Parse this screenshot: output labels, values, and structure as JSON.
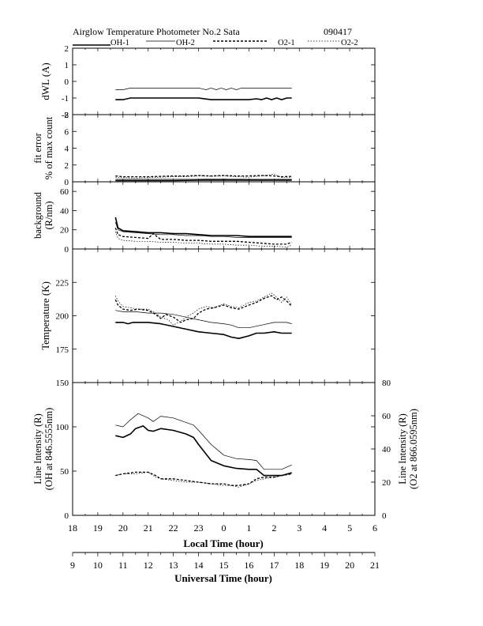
{
  "header": {
    "title": "Airglow Temperature Photometer No.2  Sata",
    "date": "090417"
  },
  "legend": [
    {
      "name": "OH-1",
      "style": "solid-thick"
    },
    {
      "name": "OH-2",
      "style": "solid-thin"
    },
    {
      "name": "O2-1",
      "style": "dashed-thick"
    },
    {
      "name": "O2-2",
      "style": "dotted-thin"
    }
  ],
  "axes": {
    "local_time_label": "Local Time (hour)",
    "universal_time_label": "Universal Time (hour)",
    "local_ticks": [
      "18",
      "19",
      "20",
      "21",
      "22",
      "23",
      "0",
      "1",
      "2",
      "3",
      "4",
      "5",
      "6"
    ],
    "ut_ticks": [
      "9",
      "10",
      "11",
      "12",
      "13",
      "14",
      "15",
      "16",
      "17",
      "18",
      "19",
      "20",
      "21"
    ]
  },
  "colors": {
    "line": "#000000",
    "background": "#ffffff"
  },
  "chart_data": [
    {
      "type": "line",
      "panel": "dwl",
      "ylabel": "dWL (A)",
      "ylim": [
        -2,
        2
      ],
      "yticks": [
        "-2",
        "-1",
        "0",
        "1",
        "2"
      ],
      "xlim": [
        18,
        30
      ],
      "series": [
        {
          "name": "OH-1",
          "x": [
            19.7,
            20.0,
            20.3,
            21.0,
            22.0,
            23.0,
            23.5,
            24.0,
            24.5,
            25.0,
            25.3,
            25.5,
            25.7,
            25.9,
            26.1,
            26.3,
            26.5,
            26.7
          ],
          "y": [
            -1.1,
            -1.1,
            -1.0,
            -1.0,
            -1.0,
            -1.0,
            -1.1,
            -1.1,
            -1.1,
            -1.1,
            -1.05,
            -1.1,
            -1.0,
            -1.1,
            -1.0,
            -1.1,
            -1.0,
            -1.0
          ]
        },
        {
          "name": "OH-2",
          "x": [
            19.7,
            20.0,
            20.3,
            21.0,
            22.0,
            23.0,
            23.3,
            23.5,
            23.7,
            23.9,
            24.1,
            24.3,
            24.5,
            24.7,
            25.0,
            25.5,
            26.0,
            26.7
          ],
          "y": [
            -0.5,
            -0.5,
            -0.4,
            -0.4,
            -0.4,
            -0.4,
            -0.5,
            -0.4,
            -0.5,
            -0.4,
            -0.5,
            -0.4,
            -0.5,
            -0.4,
            -0.4,
            -0.4,
            -0.4,
            -0.4
          ]
        }
      ]
    },
    {
      "type": "line",
      "panel": "fit_error",
      "ylabel": "fit error",
      "ylabel2": "% of max count",
      "ylim": [
        0,
        8
      ],
      "yticks": [
        "0",
        "2",
        "4",
        "6",
        "8"
      ],
      "xlim": [
        18,
        30
      ],
      "series": [
        {
          "name": "OH-1",
          "x": [
            19.7,
            21.0,
            22.0,
            23.0,
            24.0,
            25.0,
            26.0,
            26.7
          ],
          "y": [
            0.15,
            0.15,
            0.15,
            0.2,
            0.2,
            0.2,
            0.2,
            0.2
          ]
        },
        {
          "name": "OH-2",
          "x": [
            19.7,
            21.0,
            22.0,
            23.0,
            24.0,
            25.0,
            26.0,
            26.7
          ],
          "y": [
            0.3,
            0.3,
            0.3,
            0.3,
            0.35,
            0.3,
            0.3,
            0.3
          ]
        },
        {
          "name": "O2-1",
          "x": [
            19.7,
            20.0,
            20.5,
            21.0,
            21.5,
            22.0,
            22.5,
            23.0,
            23.5,
            24.0,
            24.5,
            25.0,
            25.5,
            26.0,
            26.3,
            26.7
          ],
          "y": [
            0.7,
            0.6,
            0.6,
            0.6,
            0.65,
            0.7,
            0.7,
            0.75,
            0.7,
            0.75,
            0.7,
            0.7,
            0.75,
            0.7,
            0.6,
            0.65
          ]
        },
        {
          "name": "O2-2",
          "x": [
            19.7,
            20.0,
            20.5,
            21.0,
            21.5,
            22.0,
            22.5,
            23.0,
            23.5,
            24.0,
            24.5,
            25.0,
            25.5,
            26.0,
            26.3,
            26.7
          ],
          "y": [
            0.55,
            0.5,
            0.45,
            0.5,
            0.55,
            0.6,
            0.6,
            0.7,
            0.65,
            0.7,
            0.6,
            0.55,
            0.7,
            0.9,
            0.5,
            0.5
          ]
        }
      ]
    },
    {
      "type": "line",
      "panel": "background",
      "ylabel": "background",
      "ylabel2": "(R/nm)",
      "ylim": [
        0,
        70
      ],
      "yticks": [
        "0",
        "20",
        "40",
        "60"
      ],
      "xlim": [
        18,
        30
      ],
      "series": [
        {
          "name": "OH-1",
          "x": [
            19.7,
            19.8,
            20.0,
            20.5,
            21.0,
            21.5,
            22.0,
            22.5,
            23.0,
            23.5,
            24.0,
            24.5,
            25.0,
            25.5,
            26.0,
            26.7
          ],
          "y": [
            33,
            22,
            19,
            18,
            17,
            17,
            16,
            16,
            15,
            14,
            14,
            14,
            13,
            13,
            13,
            13
          ]
        },
        {
          "name": "OH-2",
          "x": [
            19.7,
            19.8,
            20.0,
            20.5,
            21.0,
            21.5,
            22.0,
            22.5,
            23.0,
            23.5,
            24.0,
            24.5,
            25.0,
            25.5,
            26.0,
            26.7
          ],
          "y": [
            28,
            20,
            18,
            17,
            16,
            15,
            15,
            14,
            14,
            13,
            13,
            12,
            12,
            12,
            12,
            12
          ]
        },
        {
          "name": "O2-1",
          "x": [
            19.7,
            19.8,
            20.0,
            20.5,
            21.0,
            21.2,
            21.5,
            22.0,
            22.5,
            23.0,
            23.5,
            24.0,
            24.5,
            25.0,
            25.5,
            26.0,
            26.5,
            26.7
          ],
          "y": [
            22,
            15,
            13,
            12,
            11,
            16,
            10,
            10,
            9,
            9,
            8,
            8,
            8,
            7,
            6,
            5,
            5,
            7
          ]
        },
        {
          "name": "O2-2",
          "x": [
            19.7,
            19.8,
            20.0,
            20.5,
            21.0,
            21.5,
            22.0,
            22.5,
            23.0,
            23.5,
            24.0,
            24.5,
            25.0,
            25.5,
            26.0,
            26.5,
            26.7
          ],
          "y": [
            18,
            11,
            9,
            8,
            8,
            7,
            7,
            6,
            6,
            5,
            5,
            4,
            4,
            3,
            3,
            2,
            4
          ]
        }
      ]
    },
    {
      "type": "line",
      "panel": "temperature",
      "ylabel": "Temperature (K)",
      "ylim": [
        150,
        250
      ],
      "yticks": [
        "175",
        "200",
        "225"
      ],
      "xlim": [
        18,
        30
      ],
      "series": [
        {
          "name": "OH-1",
          "x": [
            19.7,
            20.0,
            20.2,
            20.4,
            21.0,
            21.5,
            22.0,
            22.5,
            23.0,
            23.5,
            24.0,
            24.3,
            24.6,
            25.0,
            25.3,
            25.6,
            26.0,
            26.3,
            26.7
          ],
          "y": [
            195,
            195,
            194,
            195,
            195,
            194,
            192,
            190,
            188,
            187,
            186,
            184,
            183,
            185,
            187,
            187,
            188,
            187,
            187
          ]
        },
        {
          "name": "OH-2",
          "x": [
            19.7,
            20.0,
            20.5,
            21.0,
            21.5,
            22.0,
            22.5,
            23.0,
            23.5,
            24.0,
            24.3,
            24.6,
            25.0,
            25.5,
            26.0,
            26.5,
            26.7
          ],
          "y": [
            204,
            203,
            203,
            202,
            202,
            201,
            199,
            197,
            195,
            194,
            193,
            191,
            191,
            193,
            195,
            195,
            194
          ]
        },
        {
          "name": "O2-1",
          "x": [
            19.7,
            19.8,
            20.0,
            20.3,
            20.6,
            21.0,
            21.3,
            21.5,
            21.7,
            22.0,
            22.3,
            22.5,
            22.8,
            23.0,
            23.3,
            23.6,
            24.0,
            24.3,
            24.6,
            25.0,
            25.3,
            25.6,
            25.9,
            26.1,
            26.3,
            26.5,
            26.7
          ],
          "y": [
            212,
            208,
            205,
            204,
            205,
            204,
            201,
            198,
            201,
            199,
            195,
            197,
            198,
            202,
            205,
            206,
            208,
            206,
            205,
            208,
            210,
            213,
            215,
            212,
            214,
            211,
            207
          ]
        },
        {
          "name": "O2-2",
          "x": [
            19.7,
            19.8,
            20.0,
            20.3,
            20.6,
            21.0,
            21.3,
            21.5,
            21.8,
            22.0,
            22.3,
            22.5,
            22.8,
            23.0,
            23.3,
            23.6,
            24.0,
            24.3,
            24.6,
            25.0,
            25.3,
            25.6,
            25.9,
            26.1,
            26.3,
            26.5,
            26.7
          ],
          "y": [
            215,
            211,
            207,
            206,
            205,
            205,
            202,
            199,
            197,
            193,
            196,
            199,
            202,
            205,
            207,
            206,
            209,
            207,
            206,
            210,
            211,
            214,
            217,
            214,
            210,
            214,
            208
          ]
        }
      ]
    },
    {
      "type": "line",
      "panel": "line_intensity",
      "ylabel": "Line Intensity (R)",
      "ylabel2": "(OH at 846.5555nm)",
      "ylabel_right": "Line Intensity (R)",
      "ylabel_right2": "(O2 at 866.0595nm)",
      "ylim": [
        0,
        150
      ],
      "ylim_right": [
        0,
        80
      ],
      "yticks": [
        "0",
        "50",
        "100",
        "150"
      ],
      "yticks_right": [
        "0",
        "20",
        "40",
        "60",
        "80"
      ],
      "xlim": [
        18,
        30
      ],
      "series": [
        {
          "name": "OH-1",
          "axis": "left",
          "x": [
            19.7,
            20.0,
            20.3,
            20.5,
            20.8,
            21.0,
            21.2,
            21.5,
            22.0,
            22.5,
            22.8,
            23.0,
            23.5,
            24.0,
            24.5,
            25.0,
            25.3,
            25.6,
            26.0,
            26.3,
            26.7
          ],
          "y": [
            90,
            88,
            92,
            98,
            101,
            96,
            95,
            98,
            96,
            92,
            88,
            80,
            62,
            56,
            53,
            52,
            52,
            45,
            45,
            45,
            48
          ]
        },
        {
          "name": "OH-2",
          "axis": "left",
          "x": [
            19.7,
            20.0,
            20.3,
            20.6,
            21.0,
            21.2,
            21.5,
            22.0,
            22.5,
            22.8,
            23.0,
            23.5,
            24.0,
            24.5,
            25.0,
            25.3,
            25.6,
            26.0,
            26.3,
            26.7
          ],
          "y": [
            102,
            100,
            108,
            115,
            110,
            106,
            112,
            110,
            105,
            102,
            96,
            80,
            68,
            64,
            63,
            62,
            52,
            52,
            52,
            57
          ]
        },
        {
          "name": "O2-1",
          "axis": "right",
          "x": [
            19.7,
            20.0,
            20.5,
            21.0,
            21.3,
            21.5,
            22.0,
            22.5,
            23.0,
            23.5,
            24.0,
            24.3,
            24.6,
            25.0,
            25.3,
            25.6,
            26.0,
            26.3,
            26.7
          ],
          "y": [
            24,
            25,
            26,
            26,
            24,
            22,
            22,
            21,
            20,
            19,
            19,
            18,
            18,
            19,
            22,
            23,
            23,
            24,
            25
          ]
        },
        {
          "name": "O2-2",
          "axis": "right",
          "x": [
            19.7,
            20.0,
            20.5,
            21.0,
            21.3,
            21.5,
            22.0,
            22.5,
            23.0,
            23.5,
            24.0,
            24.3,
            24.6,
            25.0,
            25.3,
            25.6,
            26.0,
            26.3,
            26.7
          ],
          "y": [
            24,
            25,
            25,
            26,
            23,
            22,
            21,
            20,
            20,
            19,
            18,
            18,
            17,
            19,
            21,
            22,
            23,
            24,
            26
          ]
        }
      ]
    }
  ]
}
